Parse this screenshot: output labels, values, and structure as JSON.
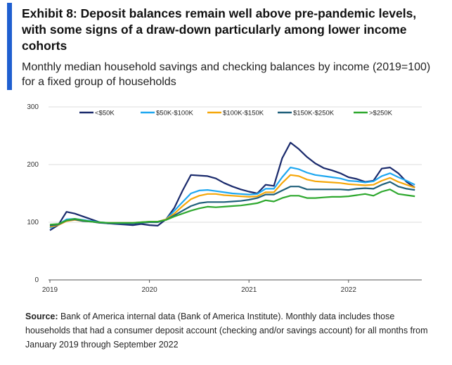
{
  "exhibit_title": "Exhibit 8: Deposit balances remain well above pre-pandemic levels, with some signs of a draw-down particularly among lower income cohorts",
  "subtitle": "Monthly median household savings and checking balances by income (2019=100) for a fixed group of households",
  "source": {
    "label": "Source:",
    "text": "Bank of America internal data (Bank of America Institute). Monthly data includes those households that had a consumer deposit account (checking and/or savings account) for all months from January 2019 through September 2022"
  },
  "colors": {
    "accent": "#1f5fd0",
    "series": [
      "#1a2a6c",
      "#1ea7f0",
      "#f5a70a",
      "#1e5f7a",
      "#2ea82e"
    ]
  },
  "chart_data": {
    "type": "line",
    "x_start": "2019-01",
    "x_end": "2022-09",
    "x": [
      "2019-01",
      "2019-02",
      "2019-03",
      "2019-04",
      "2019-05",
      "2019-06",
      "2019-07",
      "2019-08",
      "2019-09",
      "2019-10",
      "2019-11",
      "2019-12",
      "2020-01",
      "2020-02",
      "2020-03",
      "2020-04",
      "2020-05",
      "2020-06",
      "2020-07",
      "2020-08",
      "2020-09",
      "2020-10",
      "2020-11",
      "2020-12",
      "2021-01",
      "2021-02",
      "2021-03",
      "2021-04",
      "2021-05",
      "2021-06",
      "2021-07",
      "2021-08",
      "2021-09",
      "2021-10",
      "2021-11",
      "2021-12",
      "2022-01",
      "2022-02",
      "2022-03",
      "2022-04",
      "2022-05",
      "2022-06",
      "2022-07",
      "2022-08",
      "2022-09"
    ],
    "x_ticks": [
      "2019",
      "2020",
      "2021",
      "2022"
    ],
    "y_ticks": [
      "0",
      "100",
      "200",
      "300"
    ],
    "ylim": [
      0,
      300
    ],
    "grid": "horizontal",
    "legend_position": "top",
    "series": [
      {
        "name": "<$50K",
        "values": [
          86,
          95,
          118,
          115,
          110,
          105,
          100,
          98,
          97,
          96,
          95,
          97,
          95,
          94,
          105,
          125,
          155,
          182,
          181,
          180,
          176,
          168,
          162,
          157,
          153,
          150,
          165,
          163,
          211,
          238,
          227,
          213,
          202,
          194,
          190,
          185,
          178,
          175,
          170,
          172,
          193,
          195,
          185,
          170,
          160
        ]
      },
      {
        "name": "$50K-$100K",
        "values": [
          90,
          96,
          105,
          106,
          104,
          102,
          100,
          99,
          98,
          98,
          98,
          99,
          101,
          101,
          105,
          120,
          135,
          150,
          155,
          156,
          154,
          152,
          150,
          149,
          148,
          149,
          158,
          158,
          178,
          195,
          192,
          186,
          182,
          180,
          178,
          176,
          172,
          171,
          169,
          171,
          180,
          185,
          178,
          172,
          165
        ]
      },
      {
        "name": "$100K-$150K",
        "values": [
          92,
          95,
          102,
          104,
          102,
          101,
          99,
          99,
          99,
          99,
          99,
          100,
          101,
          101,
          105,
          115,
          128,
          140,
          146,
          149,
          149,
          147,
          146,
          145,
          144,
          145,
          152,
          152,
          168,
          182,
          180,
          174,
          171,
          170,
          169,
          168,
          166,
          165,
          164,
          165,
          172,
          177,
          170,
          165,
          160
        ]
      },
      {
        "name": "$150K-$250K",
        "values": [
          94,
          96,
          103,
          105,
          102,
          101,
          99,
          98,
          98,
          98,
          98,
          99,
          100,
          100,
          104,
          112,
          120,
          128,
          133,
          135,
          135,
          135,
          136,
          137,
          139,
          142,
          148,
          148,
          155,
          162,
          162,
          157,
          157,
          157,
          157,
          157,
          156,
          158,
          159,
          158,
          165,
          170,
          162,
          158,
          156
        ]
      },
      {
        "name": ">$250K",
        "values": [
          96,
          97,
          103,
          106,
          103,
          101,
          100,
          99,
          99,
          99,
          99,
          100,
          101,
          101,
          104,
          110,
          115,
          120,
          124,
          127,
          126,
          127,
          128,
          129,
          131,
          133,
          138,
          136,
          142,
          146,
          146,
          142,
          142,
          143,
          144,
          144,
          145,
          147,
          149,
          146,
          153,
          157,
          149,
          147,
          145
        ]
      }
    ]
  }
}
